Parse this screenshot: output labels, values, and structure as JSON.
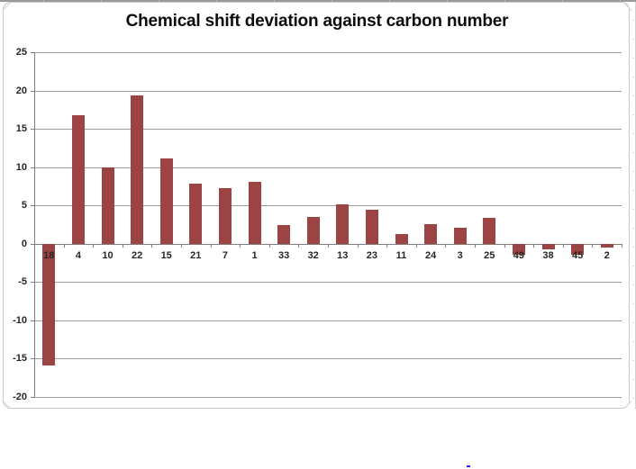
{
  "chart_data": {
    "type": "bar",
    "title": "Chemical shift deviation against carbon number",
    "categories": [
      "18",
      "4",
      "10",
      "22",
      "15",
      "21",
      "7",
      "1",
      "33",
      "32",
      "13",
      "23",
      "11",
      "24",
      "3",
      "25",
      "49",
      "38",
      "45",
      "2"
    ],
    "values": [
      -15.9,
      16.8,
      10.0,
      19.4,
      11.1,
      7.9,
      7.3,
      8.1,
      2.4,
      3.5,
      5.1,
      4.4,
      1.3,
      2.5,
      2.1,
      3.4,
      -1.4,
      -0.8,
      -1.4,
      -0.5
    ],
    "xlabel": "",
    "ylabel": "",
    "ylim": [
      -20,
      25
    ],
    "yticks": [
      25,
      20,
      15,
      10,
      5,
      0,
      -5,
      -10,
      -15,
      -20
    ],
    "grid": true,
    "legend": false,
    "colors": {
      "bar": "#9C4343",
      "gridline": "#9b9b9b",
      "axis": "#808080",
      "tick_label": "#262626",
      "title": "#0d0d0d",
      "chart_border": "#c8c8c8"
    }
  },
  "decor": {
    "stray_mark_color": "#2424d6"
  }
}
